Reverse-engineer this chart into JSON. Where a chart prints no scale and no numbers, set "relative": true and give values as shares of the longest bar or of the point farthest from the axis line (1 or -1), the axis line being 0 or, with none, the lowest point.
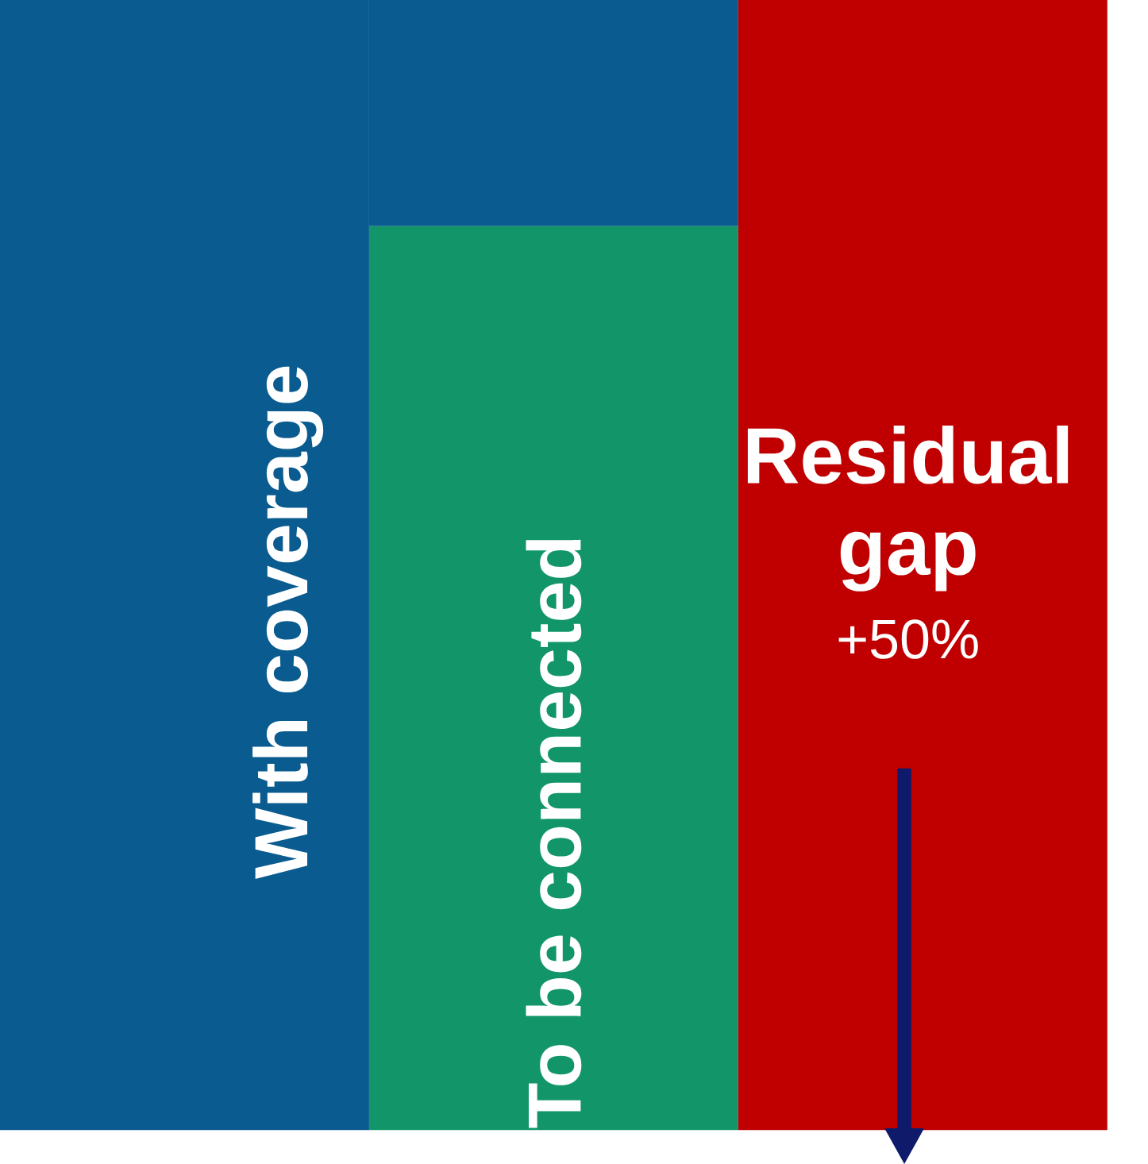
{
  "chart_data": {
    "type": "bar",
    "stacked": true,
    "relative": true,
    "categories": [
      null,
      null,
      null
    ],
    "series": [
      {
        "name": "To be connected",
        "color": "#129669",
        "values": [
          null,
          0.8,
          null
        ]
      },
      {
        "name": "With coverage",
        "color": "#0a5b8f",
        "values": [
          1,
          0.2,
          null
        ]
      },
      {
        "name": "Residual gap",
        "color": "#c00000",
        "values": [
          null,
          null,
          1
        ]
      }
    ],
    "annotations": [
      "+50%"
    ]
  }
}
